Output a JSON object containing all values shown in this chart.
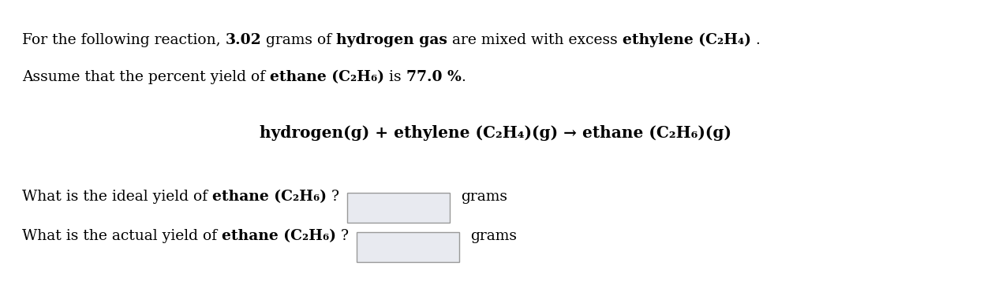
{
  "background_color": "#ffffff",
  "box_facecolor": "#e8eaf0",
  "box_edgecolor": "#999999",
  "font_size_main": 13.5,
  "font_size_eq": 14.5,
  "font_family": "DejaVu Serif",
  "line1": [
    {
      "text": "For the following reaction, ",
      "bold": false
    },
    {
      "text": "3.02",
      "bold": true
    },
    {
      "text": " grams of ",
      "bold": false
    },
    {
      "text": "hydrogen gas",
      "bold": true
    },
    {
      "text": " are mixed with excess ",
      "bold": false
    },
    {
      "text": "ethylene (C₂H₄)",
      "bold": true
    },
    {
      "text": " .",
      "bold": false
    }
  ],
  "line2": [
    {
      "text": "Assume that the percent yield of ",
      "bold": false
    },
    {
      "text": "ethane (C₂H₆)",
      "bold": true
    },
    {
      "text": " is ",
      "bold": false
    },
    {
      "text": "77.0 %",
      "bold": true
    },
    {
      "text": ".",
      "bold": false
    }
  ],
  "equation": [
    {
      "text": "hydrogen(g) + ethylene (C₂H₄)(g) → ethane (C₂H₆)(g)",
      "bold": true
    }
  ],
  "q1": [
    {
      "text": "What is the ideal yield of ",
      "bold": false
    },
    {
      "text": "ethane (C₂H₆)",
      "bold": true
    },
    {
      "text": " ?",
      "bold": false
    }
  ],
  "q2": [
    {
      "text": "What is the actual yield of ",
      "bold": false
    },
    {
      "text": "ethane (C₂H₆)",
      "bold": true
    },
    {
      "text": " ?",
      "bold": false
    }
  ],
  "grams_label": "grams"
}
